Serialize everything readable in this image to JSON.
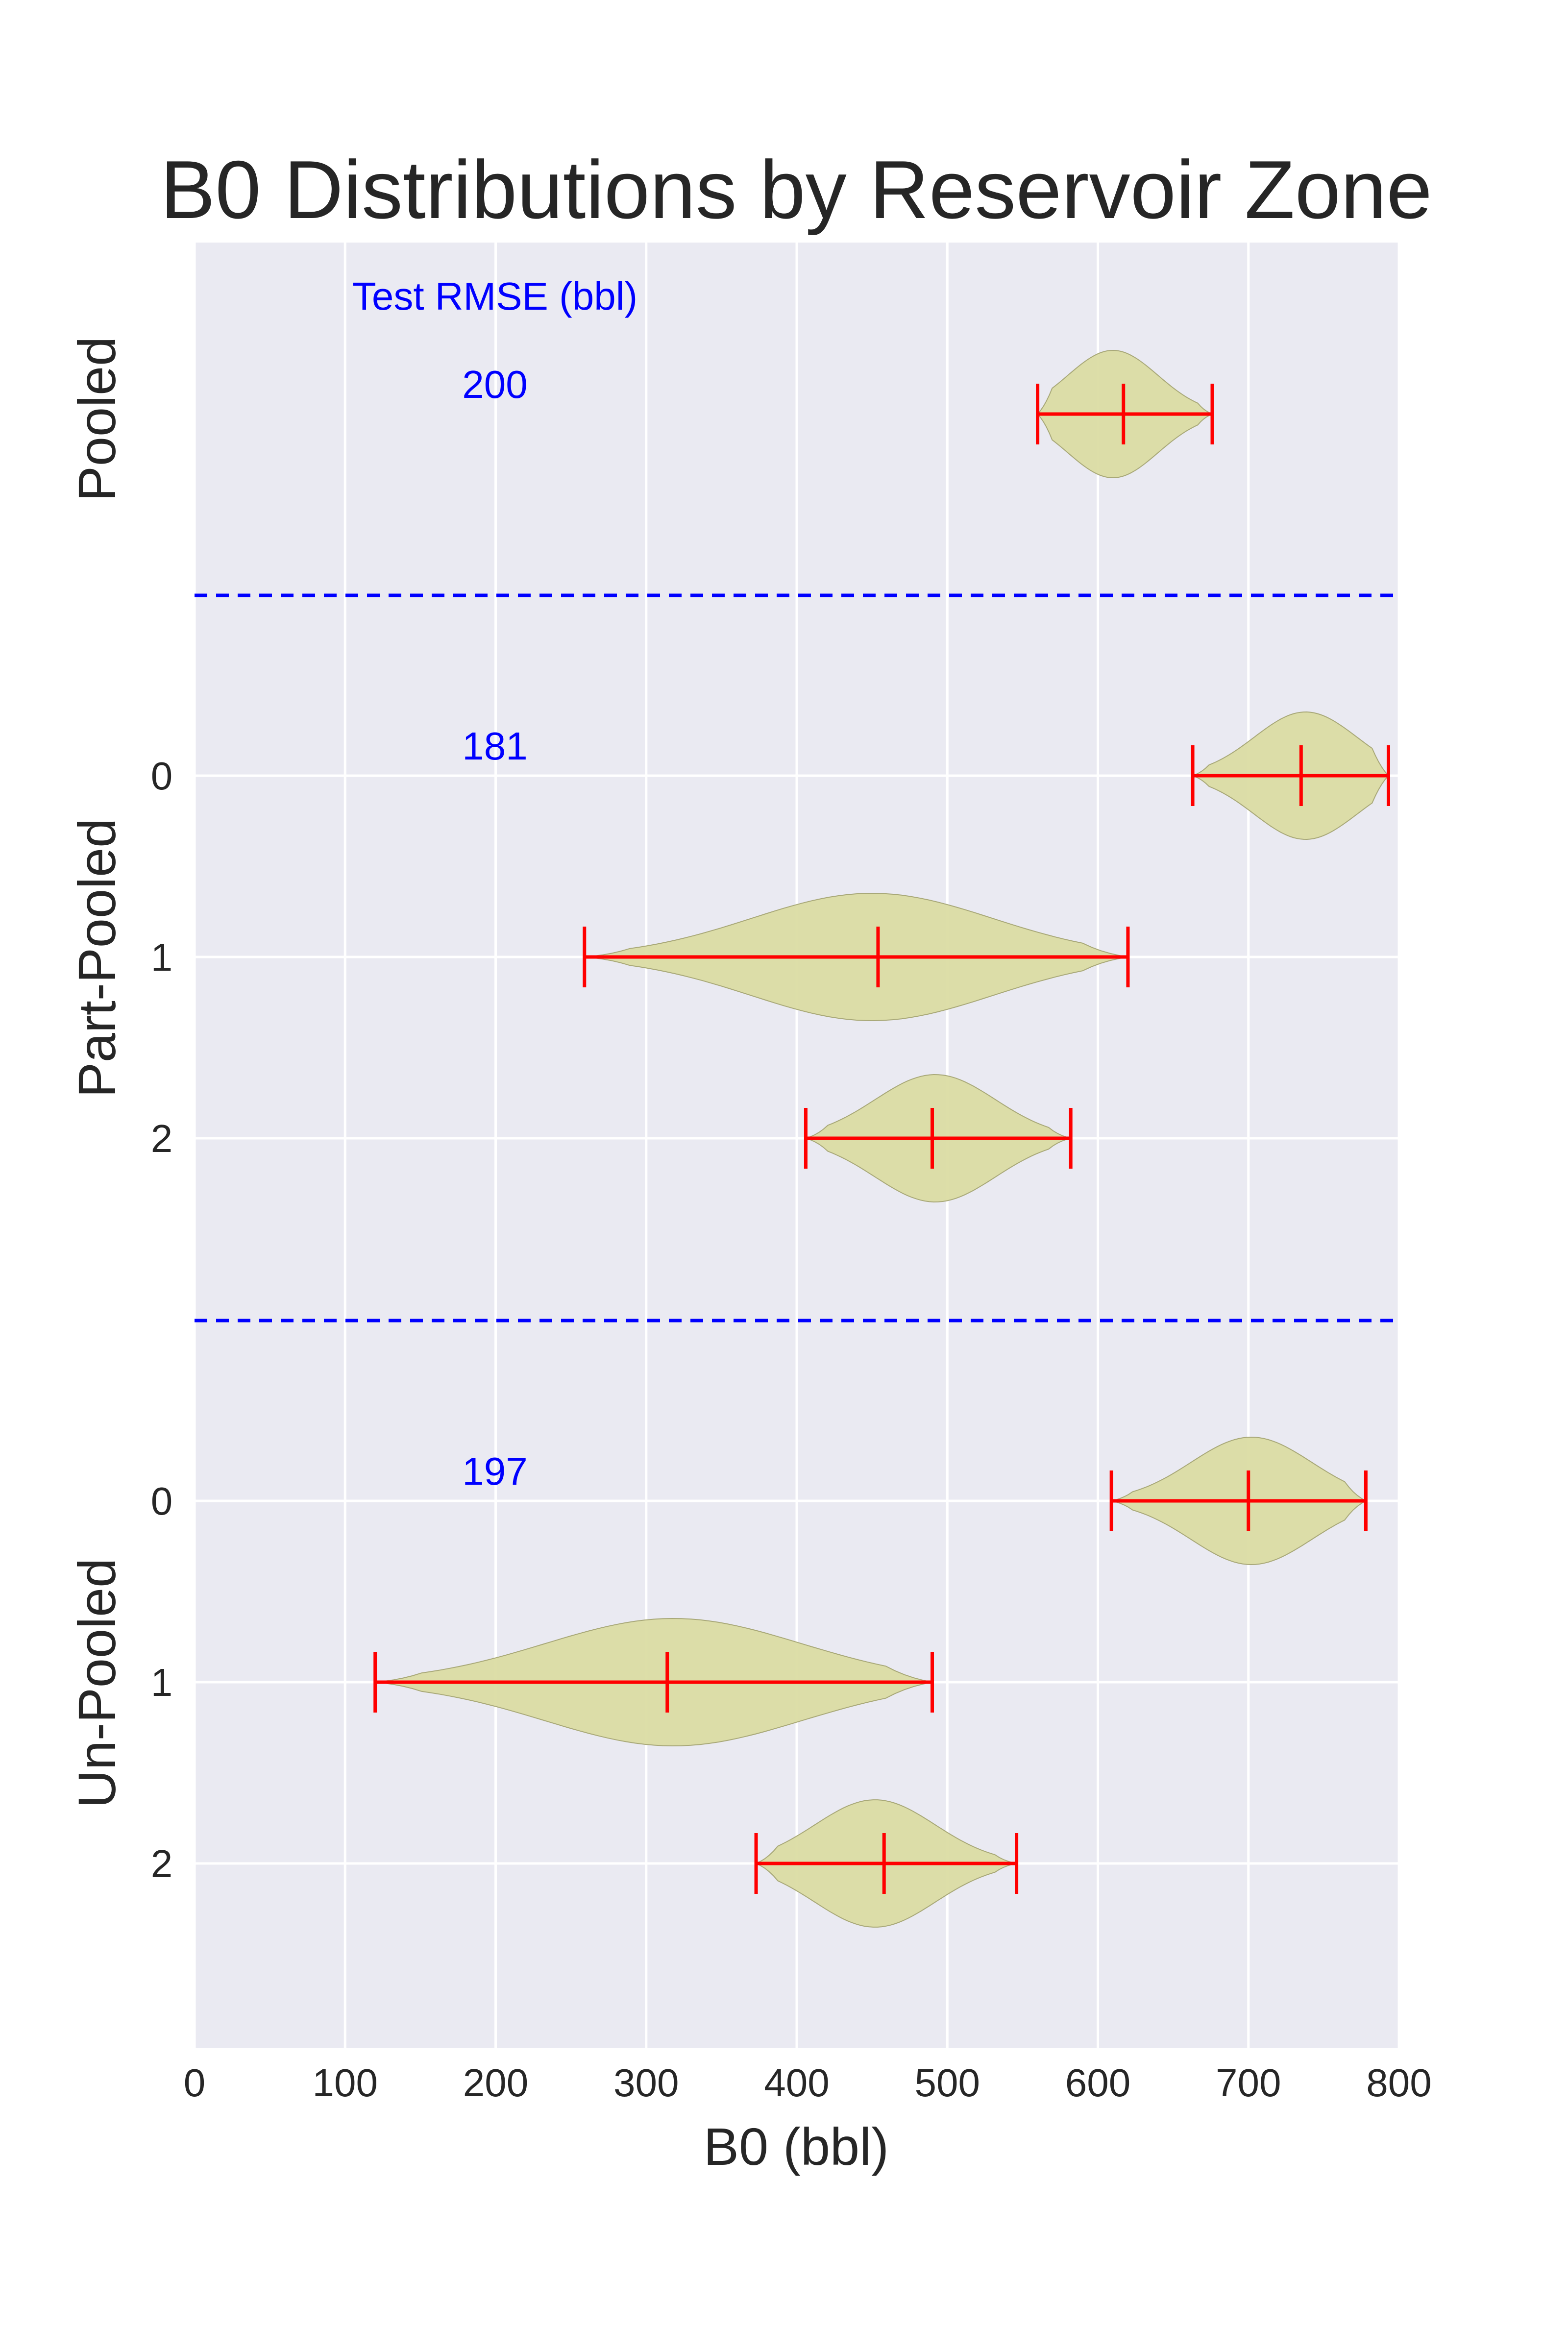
{
  "chart_data": {
    "type": "violin",
    "title": "B0 Distributions by Reservoir Zone",
    "xlabel": "B0 (bbl)",
    "xlim": [
      0,
      800
    ],
    "x_ticks": [
      "0",
      "100",
      "200",
      "300",
      "400",
      "500",
      "600",
      "700",
      "800"
    ],
    "grid": true,
    "rmse_header": "Test RMSE (bbl)",
    "panels": [
      {
        "name": "Pooled",
        "rmse": "200",
        "violins": [
          {
            "label": "",
            "min": 560,
            "mean": 617,
            "max": 676,
            "mode": 610,
            "spread": 30
          }
        ]
      },
      {
        "name": "Part-Pooled",
        "rmse": "181",
        "violins": [
          {
            "label": "0",
            "min": 663,
            "mean": 735,
            "max": 793,
            "mode": 738,
            "spread": 34
          },
          {
            "label": "1",
            "min": 259,
            "mean": 454,
            "max": 620,
            "mode": 450,
            "spread": 80
          },
          {
            "label": "2",
            "min": 406,
            "mean": 490,
            "max": 582,
            "mode": 492,
            "spread": 40
          }
        ]
      },
      {
        "name": "Un-Pooled",
        "rmse": "197",
        "violins": [
          {
            "label": "0",
            "min": 609,
            "mean": 700,
            "max": 778,
            "mode": 702,
            "spread": 40
          },
          {
            "label": "1",
            "min": 120,
            "mean": 314,
            "max": 490,
            "mode": 318,
            "spread": 85
          },
          {
            "label": "2",
            "min": 373,
            "mean": 458,
            "max": 546,
            "mode": 452,
            "spread": 40
          }
        ]
      }
    ]
  }
}
